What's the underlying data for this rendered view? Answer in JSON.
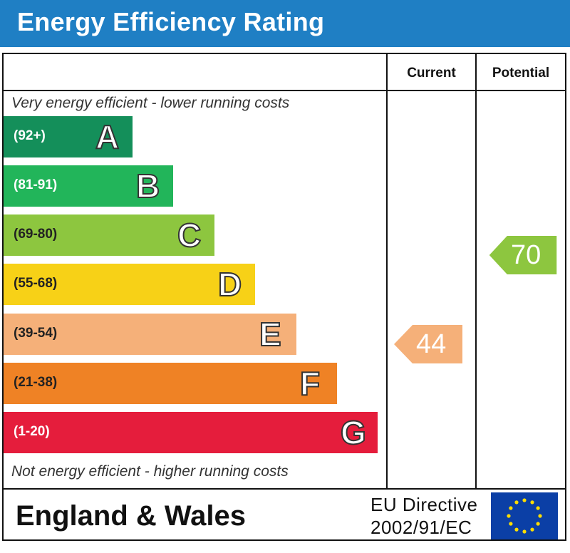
{
  "title": "Energy Efficiency Rating",
  "columns": {
    "current": "Current",
    "potential": "Potential"
  },
  "top_caption": "Very energy efficient - lower running costs",
  "bottom_caption": "Not energy efficient - higher running costs",
  "bands": [
    {
      "letter": "A",
      "range": "(92+)",
      "color": "#148f5a"
    },
    {
      "letter": "B",
      "range": "(81-91)",
      "color": "#22b55a"
    },
    {
      "letter": "C",
      "range": "(69-80)",
      "color": "#8dc63f"
    },
    {
      "letter": "D",
      "range": "(55-68)",
      "color": "#f7d117"
    },
    {
      "letter": "E",
      "range": "(39-54)",
      "color": "#f5b079"
    },
    {
      "letter": "F",
      "range": "(21-38)",
      "color": "#ef8225"
    },
    {
      "letter": "G",
      "range": "(1-20)",
      "color": "#e51d3c"
    }
  ],
  "current": {
    "value": "44",
    "band": "E",
    "color": "#f5b079"
  },
  "potential": {
    "value": "70",
    "band": "C",
    "color": "#8dc63f"
  },
  "footer": {
    "region": "England & Wales",
    "directive_line1": "EU Directive",
    "directive_line2": "2002/91/EC",
    "flag_icon": "eu-flag-icon"
  }
}
